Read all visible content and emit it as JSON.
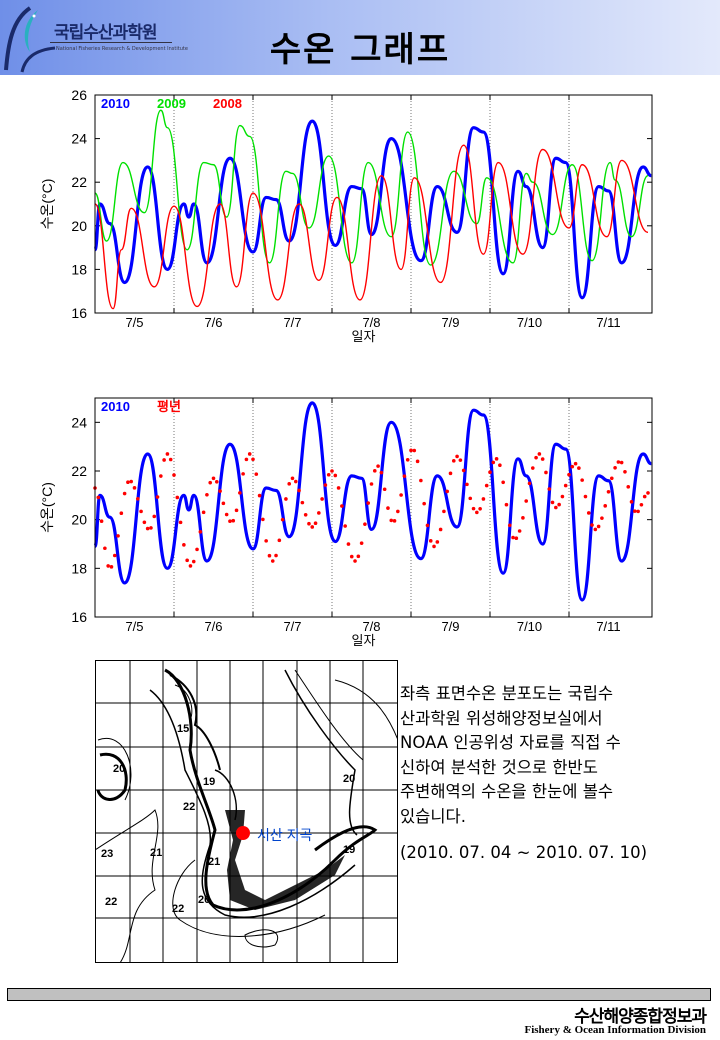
{
  "header": {
    "logo_kr": "국립수산과학원",
    "logo_en": "National Fisheries Research & Development Institute",
    "title": "수온 그래프"
  },
  "colors": {
    "y2010": "#0000ff",
    "y2009": "#00e000",
    "y2008": "#ff0000",
    "normal": "#ff0000",
    "station": "#ff0000",
    "station_label": "#0044cc"
  },
  "chart_data": [
    {
      "type": "line",
      "xlabel": "일자",
      "ylabel": "수온(°C)",
      "ylim": [
        16,
        26
      ],
      "yticks": [
        16,
        18,
        20,
        22,
        24,
        26
      ],
      "xlim": [
        "07-05 00:00",
        "07-12 01:00"
      ],
      "xticks": [
        "7/5",
        "7/6",
        "7/7",
        "7/8",
        "7/9",
        "7/10",
        "7/11"
      ],
      "grid": "dotted vertical lines at day boundaries",
      "legend": "top-left",
      "series": [
        {
          "name": "2010",
          "color": "#0000ff",
          "style": "thick line",
          "points": [
            [
              "07-05 00:00",
              18.9
            ],
            [
              "07-05 01:30",
              21.0
            ],
            [
              "07-05 04:30",
              20.1
            ],
            [
              "07-05 09:00",
              17.4
            ],
            [
              "07-05 16:00",
              22.7
            ],
            [
              "07-05 22:00",
              18.0
            ],
            [
              "07-06 03:00",
              21.0
            ],
            [
              "07-06 04:30",
              20.4
            ],
            [
              "07-06 06:00",
              21.0
            ],
            [
              "07-06 10:00",
              18.3
            ],
            [
              "07-06 17:00",
              23.1
            ],
            [
              "07-07 00:00",
              18.8
            ],
            [
              "07-07 04:00",
              21.3
            ],
            [
              "07-07 07:00",
              21.2
            ],
            [
              "07-07 11:00",
              19.3
            ],
            [
              "07-07 18:00",
              24.8
            ],
            [
              "07-08 01:00",
              19.1
            ],
            [
              "07-08 06:00",
              21.8
            ],
            [
              "07-08 09:00",
              21.7
            ],
            [
              "07-08 12:00",
              19.6
            ],
            [
              "07-08 18:00",
              24.0
            ],
            [
              "07-09 03:00",
              18.4
            ],
            [
              "07-09 08:00",
              21.8
            ],
            [
              "07-09 14:00",
              19.7
            ],
            [
              "07-09 19:00",
              24.5
            ],
            [
              "07-09 22:00",
              24.3
            ],
            [
              "07-10 04:00",
              17.8
            ],
            [
              "07-10 08:30",
              22.5
            ],
            [
              "07-10 11:00",
              21.8
            ],
            [
              "07-10 16:00",
              19.0
            ],
            [
              "07-10 20:00",
              23.1
            ],
            [
              "07-10 23:00",
              22.9
            ],
            [
              "07-11 04:00",
              16.7
            ],
            [
              "07-11 09:00",
              21.8
            ],
            [
              "07-11 12:00",
              21.6
            ],
            [
              "07-11 16:00",
              18.3
            ],
            [
              "07-11 22:30",
              22.7
            ],
            [
              "07-12 01:00",
              22.3
            ]
          ]
        },
        {
          "name": "2009",
          "color": "#00e000",
          "style": "line",
          "points": [
            [
              "07-05 00:00",
              21.5
            ],
            [
              "07-05 03:30",
              19.3
            ],
            [
              "07-05 08:30",
              22.9
            ],
            [
              "07-05 15:00",
              20.6
            ],
            [
              "07-05 20:00",
              25.3
            ],
            [
              "07-05 22:00",
              24.5
            ],
            [
              "07-06 04:00",
              18.9
            ],
            [
              "07-06 09:00",
              22.9
            ],
            [
              "07-06 12:00",
              22.8
            ],
            [
              "07-06 16:00",
              20.4
            ],
            [
              "07-06 20:00",
              24.6
            ],
            [
              "07-06 23:00",
              24.1
            ],
            [
              "07-07 05:00",
              18.3
            ],
            [
              "07-07 10:00",
              22.5
            ],
            [
              "07-07 12:00",
              22.4
            ],
            [
              "07-07 17:00",
              19.9
            ],
            [
              "07-07 23:00",
              23.2
            ],
            [
              "07-08 06:00",
              18.3
            ],
            [
              "07-08 11:00",
              22.9
            ],
            [
              "07-08 18:00",
              19.5
            ],
            [
              "07-08 23:00",
              24.3
            ],
            [
              "07-09 06:00",
              18.2
            ],
            [
              "07-09 13:00",
              22.5
            ],
            [
              "07-09 20:00",
              20.1
            ],
            [
              "07-09 23:00",
              22.2
            ],
            [
              "07-10 07:00",
              18.3
            ],
            [
              "07-10 11:00",
              22.4
            ],
            [
              "07-10 13:00",
              22.0
            ],
            [
              "07-10 19:00",
              19.6
            ],
            [
              "07-11 01:00",
              22.8
            ],
            [
              "07-11 07:00",
              18.4
            ],
            [
              "07-11 12:30",
              22.9
            ],
            [
              "07-11 14:00",
              22.1
            ],
            [
              "07-11 19:00",
              19.5
            ],
            [
              "07-12 00:00",
              22.3
            ]
          ]
        },
        {
          "name": "2008",
          "color": "#ff0000",
          "style": "line",
          "points": [
            [
              "07-05 00:00",
              21.0
            ],
            [
              "07-05 05:30",
              16.2
            ],
            [
              "07-05 08:00",
              18.9
            ],
            [
              "07-05 11:00",
              20.8
            ],
            [
              "07-05 18:00",
              17.2
            ],
            [
              "07-06 00:00",
              20.9
            ],
            [
              "07-06 07:00",
              16.3
            ],
            [
              "07-06 14:00",
              21.0
            ],
            [
              "07-06 19:00",
              17.2
            ],
            [
              "07-07 00:00",
              21.5
            ],
            [
              "07-07 07:30",
              16.6
            ],
            [
              "07-07 14:00",
              21.0
            ],
            [
              "07-07 20:00",
              17.5
            ],
            [
              "07-08 01:30",
              21.3
            ],
            [
              "07-08 08:30",
              16.6
            ],
            [
              "07-08 15:00",
              22.3
            ],
            [
              "07-08 21:00",
              18.0
            ],
            [
              "07-09 01:00",
              22.2
            ],
            [
              "07-09 09:00",
              17.4
            ],
            [
              "07-09 16:00",
              23.7
            ],
            [
              "07-09 22:00",
              18.7
            ],
            [
              "07-10 02:30",
              22.9
            ],
            [
              "07-10 10:00",
              18.7
            ],
            [
              "07-10 16:00",
              23.5
            ],
            [
              "07-11 00:00",
              19.9
            ],
            [
              "07-11 04:00",
              22.8
            ],
            [
              "07-11 11:30",
              19.5
            ],
            [
              "07-11 16:00",
              23.0
            ],
            [
              "07-12 00:00",
              19.7
            ]
          ]
        }
      ]
    },
    {
      "type": "line",
      "xlabel": "일자",
      "ylabel": "수온(°C)",
      "ylim": [
        16,
        25
      ],
      "yticks": [
        16,
        18,
        20,
        22,
        24
      ],
      "xlim": [
        "07-05 00:00",
        "07-12 01:00"
      ],
      "xticks": [
        "7/5",
        "7/6",
        "7/7",
        "7/8",
        "7/9",
        "7/10",
        "7/11"
      ],
      "grid": "dotted vertical lines at day boundaries",
      "legend": "top-left",
      "series": [
        {
          "name": "2010",
          "color": "#0000ff",
          "style": "thick line",
          "same_as": "2010"
        },
        {
          "name": "평년",
          "color": "#ff0000",
          "style": "dots",
          "points": [
            [
              "07-05 00:00",
              21.3
            ],
            [
              "07-05 04:30",
              18.0
            ],
            [
              "07-05 10:30",
              21.6
            ],
            [
              "07-05 16:30",
              19.6
            ],
            [
              "07-05 22:00",
              22.7
            ],
            [
              "07-06 05:00",
              18.1
            ],
            [
              "07-06 12:00",
              21.7
            ],
            [
              "07-06 17:30",
              19.9
            ],
            [
              "07-06 23:00",
              22.7
            ],
            [
              "07-07 06:00",
              18.3
            ],
            [
              "07-07 12:00",
              21.7
            ],
            [
              "07-07 18:00",
              19.7
            ],
            [
              "07-08 00:00",
              22.0
            ],
            [
              "07-08 07:00",
              18.3
            ],
            [
              "07-08 14:00",
              22.2
            ],
            [
              "07-08 18:30",
              19.9
            ],
            [
              "07-09 00:30",
              22.9
            ],
            [
              "07-09 07:00",
              18.9
            ],
            [
              "07-09 14:00",
              22.6
            ],
            [
              "07-09 20:00",
              20.3
            ],
            [
              "07-10 02:00",
              22.5
            ],
            [
              "07-10 07:30",
              19.2
            ],
            [
              "07-10 15:00",
              22.7
            ],
            [
              "07-10 20:00",
              20.5
            ],
            [
              "07-11 02:00",
              22.3
            ],
            [
              "07-11 08:00",
              19.6
            ],
            [
              "07-11 15:30",
              22.4
            ],
            [
              "07-11 20:30",
              20.3
            ],
            [
              "07-12 00:00",
              21.1
            ]
          ]
        }
      ]
    }
  ],
  "map": {
    "station_label": "서산 지곡",
    "contour_labels": [
      "20",
      "15",
      "19",
      "22",
      "21",
      "23",
      "22",
      "22",
      "21",
      "20",
      "20",
      "19"
    ]
  },
  "description": {
    "lines": [
      "좌측 표면수온 분포도는 국립수",
      "산과학원 위성해양정보실에서",
      "NOAA 인공위성 자료를 직접 수",
      "신하여 분석한 것으로  한반도",
      "주변해역의 수온을 한눈에 볼수",
      "있습니다."
    ],
    "period": "(2010. 07. 04 ~ 2010. 07. 10)"
  },
  "footer": {
    "org_kr": "수산해양종합정보과",
    "org_en": "Fishery & Ocean Information Division"
  }
}
